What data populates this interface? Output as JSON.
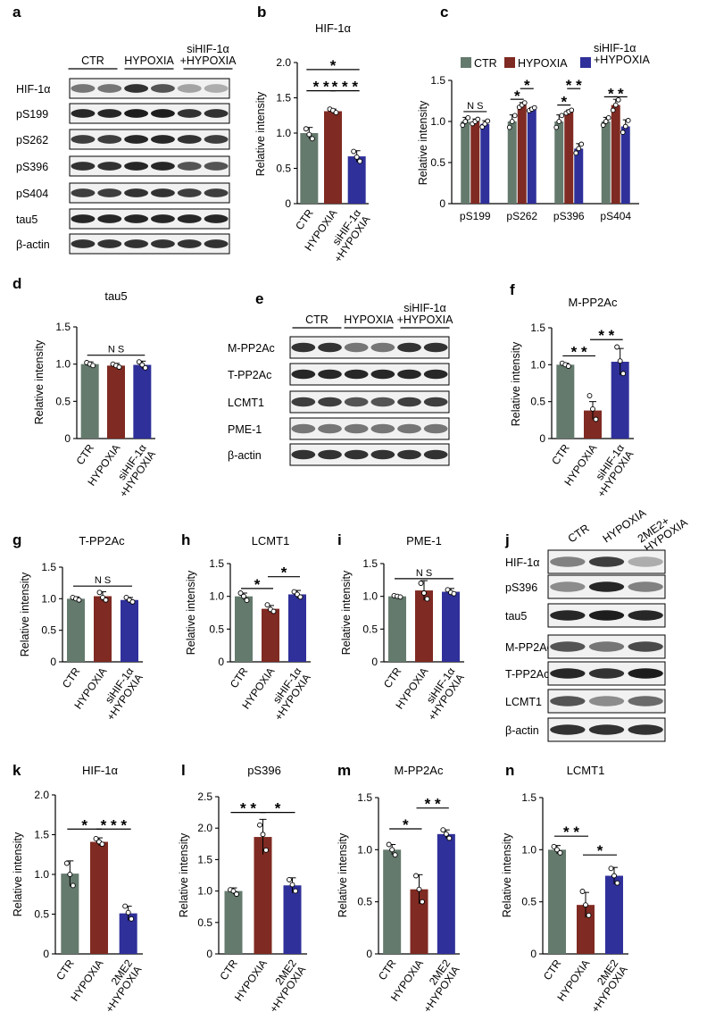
{
  "colors": {
    "ctr": "#647a6d",
    "hypoxia": "#7f2a22",
    "treat": "#2f309a"
  },
  "panel_letters": {
    "a": "a",
    "b": "b",
    "c": "c",
    "d": "d",
    "e": "e",
    "f": "f",
    "g": "g",
    "h": "h",
    "i": "i",
    "j": "j",
    "k": "k",
    "l": "l",
    "m": "m",
    "n": "n"
  },
  "blot_a": {
    "groups": [
      "CTR",
      "HYPOXIA",
      "siHIF-1α\n+HYPOXIA"
    ],
    "rows": [
      "HIF-1α",
      "pS199",
      "pS262",
      "pS396",
      "pS404",
      "tau5",
      "β-actin"
    ]
  },
  "blot_e": {
    "groups": [
      "CTR",
      "HYPOXIA",
      "siHIF-1α\n+HYPOXIA"
    ],
    "rows": [
      "M-PP2Ac",
      "T-PP2Ac",
      "LCMT1",
      "PME-1",
      "β-actin"
    ]
  },
  "blot_j": {
    "groups": [
      "CTR",
      "HYPOXIA",
      "2ME2+\nHYPOXIA"
    ],
    "rows": [
      "HIF-1α",
      "pS396",
      "tau5",
      "M-PP2Ac",
      "T-PP2Ac",
      "LCMT1",
      "β-actin"
    ]
  },
  "legend_c": [
    "CTR",
    "HYPOXIA",
    "siHIF-1α\n+HYPOXIA"
  ],
  "chart_data": [
    {
      "panel": "b",
      "type": "bar",
      "title": "HIF-1α",
      "ylabel": "Relative intensity",
      "ylim": [
        0,
        2.0
      ],
      "yticks": [
        "0",
        "0.5",
        "1.0",
        "1.5",
        "2.0"
      ],
      "categories": [
        "CTR",
        "HYPOXIA",
        "siHIF-1α\n+HYPOXIA"
      ],
      "values": [
        1.0,
        1.31,
        0.67
      ],
      "errors": [
        0.08,
        0.03,
        0.08
      ],
      "points": [
        [
          1.06,
          0.98,
          0.92
        ],
        [
          1.34,
          1.32,
          1.29
        ],
        [
          0.74,
          0.66,
          0.6
        ]
      ],
      "sig": [
        {
          "from": 0,
          "to": 1,
          "label": "* *",
          "level": 1.6
        },
        {
          "from": 1,
          "to": 2,
          "label": "* * *",
          "level": 1.6
        },
        {
          "from": 0,
          "to": 2,
          "label": "*",
          "level": 1.9
        }
      ]
    },
    {
      "panel": "c",
      "type": "bar",
      "title": "",
      "ylabel": "Relative intensity",
      "ylim": [
        0,
        1.5
      ],
      "yticks": [
        "0",
        "0.5",
        "1.0",
        "1.5"
      ],
      "categories": [
        "pS199",
        "pS262",
        "pS396",
        "pS404"
      ],
      "series": [
        {
          "name": "CTR",
          "values": [
            1.0,
            1.0,
            1.0,
            1.0
          ],
          "errors": [
            0.05,
            0.08,
            0.08,
            0.05
          ]
        },
        {
          "name": "HYPOXIA",
          "values": [
            1.0,
            1.2,
            1.12,
            1.2
          ],
          "errors": [
            0.03,
            0.03,
            0.02,
            0.07
          ]
        },
        {
          "name": "siHIF-1α\n+HYPOXIA",
          "values": [
            0.97,
            1.15,
            0.67,
            0.94
          ],
          "errors": [
            0.04,
            0.02,
            0.06,
            0.08
          ]
        }
      ],
      "sig": [
        {
          "cat": 0,
          "from": 0,
          "to": 2,
          "label": "N S",
          "level": 1.12
        },
        {
          "cat": 1,
          "from": 0,
          "to": 1,
          "label": "*",
          "level": 1.27
        },
        {
          "cat": 1,
          "from": 1,
          "to": 2,
          "label": "*",
          "level": 1.4
        },
        {
          "cat": 2,
          "from": 0,
          "to": 1,
          "label": "*",
          "level": 1.2
        },
        {
          "cat": 2,
          "from": 1,
          "to": 2,
          "label": "* *",
          "level": 1.4
        },
        {
          "cat": 3,
          "from": 0,
          "to": 1,
          "label": "*",
          "level": 1.3
        },
        {
          "cat": 3,
          "from": 1,
          "to": 2,
          "label": "*",
          "level": 1.3
        }
      ]
    },
    {
      "panel": "d",
      "type": "bar",
      "title": "tau5",
      "ylabel": "Relative intensity",
      "ylim": [
        0,
        1.5
      ],
      "yticks": [
        "0",
        "0.5",
        "1.0",
        "1.5"
      ],
      "categories": [
        "CTR",
        "HYPOXIA",
        "siHIF-1α\n+HYPOXIA"
      ],
      "values": [
        1.0,
        0.98,
        0.99
      ],
      "errors": [
        0.03,
        0.03,
        0.05
      ],
      "points": [
        [
          1.02,
          1.0,
          0.98
        ],
        [
          1.0,
          0.98,
          0.96
        ],
        [
          1.03,
          0.99,
          0.95
        ]
      ],
      "sig": [
        {
          "from": 0,
          "to": 2,
          "label": "N S",
          "level": 1.12
        }
      ]
    },
    {
      "panel": "f",
      "type": "bar",
      "title": "M-PP2Ac",
      "ylabel": "Relative intensity",
      "ylim": [
        0,
        1.5
      ],
      "yticks": [
        "0",
        "0.5",
        "1.0",
        "1.5"
      ],
      "categories": [
        "CTR",
        "HYPOXIA",
        "siHIF-1α\n+HYPOXIA"
      ],
      "values": [
        1.0,
        0.38,
        1.04
      ],
      "errors": [
        0.02,
        0.12,
        0.18
      ],
      "points": [
        [
          1.02,
          1.0,
          0.98
        ],
        [
          0.58,
          0.4,
          0.26
        ],
        [
          1.24,
          1.05,
          0.88
        ]
      ],
      "sig": [
        {
          "from": 0,
          "to": 1,
          "label": "* *",
          "level": 1.12
        },
        {
          "from": 1,
          "to": 2,
          "label": "* *",
          "level": 1.34
        }
      ]
    },
    {
      "panel": "g",
      "type": "bar",
      "title": "T-PP2Ac",
      "ylabel": "Relative intensity",
      "ylim": [
        0,
        1.5
      ],
      "yticks": [
        "0",
        "0.5",
        "1.0",
        "1.5"
      ],
      "categories": [
        "CTR",
        "HYPOXIA",
        "siHIF-1α\n+HYPOXIA"
      ],
      "values": [
        1.0,
        1.04,
        0.98
      ],
      "errors": [
        0.03,
        0.07,
        0.04
      ],
      "points": [
        [
          1.02,
          1.0,
          0.98
        ],
        [
          1.1,
          1.02,
          0.98
        ],
        [
          1.02,
          0.98,
          0.95
        ]
      ],
      "sig": [
        {
          "from": 0,
          "to": 2,
          "label": "N S",
          "level": 1.2
        }
      ]
    },
    {
      "panel": "h",
      "type": "bar",
      "title": "LCMT1",
      "ylabel": "Relative intensity",
      "ylim": [
        0,
        1.5
      ],
      "yticks": [
        "0",
        "0.5",
        "1.0",
        "1.5"
      ],
      "categories": [
        "CTR",
        "HYPOXIA",
        "siHIF-1α\n+HYPOXIA"
      ],
      "values": [
        1.0,
        0.81,
        1.03
      ],
      "errors": [
        0.05,
        0.05,
        0.06
      ],
      "points": [
        [
          1.05,
          1.0,
          0.94
        ],
        [
          0.87,
          0.8,
          0.77
        ],
        [
          1.07,
          1.03,
          0.99
        ]
      ],
      "sig": [
        {
          "from": 0,
          "to": 1,
          "label": "*",
          "level": 1.12
        },
        {
          "from": 1,
          "to": 2,
          "label": "*",
          "level": 1.3
        }
      ]
    },
    {
      "panel": "i",
      "type": "bar",
      "title": "PME-1",
      "ylabel": "Relative intensity",
      "ylim": [
        0,
        1.5
      ],
      "yticks": [
        "0",
        "0.5",
        "1.0",
        "1.5"
      ],
      "categories": [
        "CTR",
        "HYPOXIA",
        "siHIF-1α\n+HYPOXIA"
      ],
      "values": [
        1.0,
        1.09,
        1.07
      ],
      "errors": [
        0.02,
        0.15,
        0.05
      ],
      "points": [
        [
          1.01,
          1.0,
          0.99
        ],
        [
          1.2,
          1.05,
          0.96
        ],
        [
          1.1,
          1.06,
          1.04
        ]
      ],
      "sig": [
        {
          "from": 0,
          "to": 2,
          "label": "N S",
          "level": 1.27
        }
      ]
    },
    {
      "panel": "k",
      "type": "bar",
      "title": "HIF-1α",
      "ylabel": "Relative intensity",
      "ylim": [
        0,
        2.0
      ],
      "yticks": [
        "0",
        "0.5",
        "1.0",
        "1.5",
        "2.0"
      ],
      "categories": [
        "CTR",
        "HYPOXIA",
        "2ME2\n+HYPOXIA"
      ],
      "values": [
        1.01,
        1.41,
        0.51
      ],
      "errors": [
        0.16,
        0.05,
        0.09
      ],
      "points": [
        [
          1.14,
          1.0,
          0.86
        ],
        [
          1.45,
          1.41,
          1.38
        ],
        [
          0.6,
          0.52,
          0.44
        ]
      ],
      "sig": [
        {
          "from": 0,
          "to": 1,
          "label": "*",
          "level": 1.57
        },
        {
          "from": 1,
          "to": 2,
          "label": "* * *",
          "level": 1.57
        }
      ]
    },
    {
      "panel": "l",
      "type": "bar",
      "title": "pS396",
      "ylabel": "Relative intensity",
      "ylim": [
        0,
        2.5
      ],
      "yticks": [
        "0",
        "0.5",
        "1.0",
        "1.5",
        "2.0",
        "2.5"
      ],
      "categories": [
        "CTR",
        "HYPOXIA",
        "2ME2\n+HYPOXIA"
      ],
      "values": [
        1.0,
        1.86,
        1.09
      ],
      "errors": [
        0.05,
        0.28,
        0.12
      ],
      "points": [
        [
          1.02,
          1.0,
          0.95
        ],
        [
          2.05,
          1.9,
          1.65
        ],
        [
          1.18,
          1.1,
          1.0
        ]
      ],
      "sig": [
        {
          "from": 0,
          "to": 1,
          "label": "* *",
          "level": 2.25
        },
        {
          "from": 1,
          "to": 2,
          "label": "*",
          "level": 2.25
        }
      ]
    },
    {
      "panel": "m",
      "type": "bar",
      "title": "M-PP2Ac",
      "ylabel": "Relative intensity",
      "ylim": [
        0,
        1.5
      ],
      "yticks": [
        "0",
        "0.5",
        "1.0",
        "1.5"
      ],
      "categories": [
        "CTR",
        "HYPOXIA",
        "2ME2\n+HYPOXIA"
      ],
      "values": [
        1.0,
        0.62,
        1.15
      ],
      "errors": [
        0.05,
        0.14,
        0.04
      ],
      "points": [
        [
          1.05,
          1.0,
          0.95
        ],
        [
          0.75,
          0.62,
          0.5
        ],
        [
          1.19,
          1.15,
          1.11
        ]
      ],
      "sig": [
        {
          "from": 0,
          "to": 1,
          "label": "*",
          "level": 1.2
        },
        {
          "from": 1,
          "to": 2,
          "label": "* *",
          "level": 1.4
        }
      ]
    },
    {
      "panel": "n",
      "type": "bar",
      "title": "LCMT1",
      "ylabel": "Relative intensity",
      "ylim": [
        0,
        1.5
      ],
      "yticks": [
        "0",
        "0.5",
        "1.0",
        "1.5"
      ],
      "categories": [
        "CTR",
        "HYPOXIA",
        "2ME2\n+HYPOXIA"
      ],
      "values": [
        1.0,
        0.47,
        0.75
      ],
      "errors": [
        0.04,
        0.12,
        0.08
      ],
      "points": [
        [
          1.03,
          1.0,
          0.97
        ],
        [
          0.6,
          0.47,
          0.37
        ],
        [
          0.82,
          0.75,
          0.68
        ]
      ],
      "sig": [
        {
          "from": 0,
          "to": 1,
          "label": "* *",
          "level": 1.13
        },
        {
          "from": 1,
          "to": 2,
          "label": "*",
          "level": 0.95
        }
      ]
    }
  ]
}
